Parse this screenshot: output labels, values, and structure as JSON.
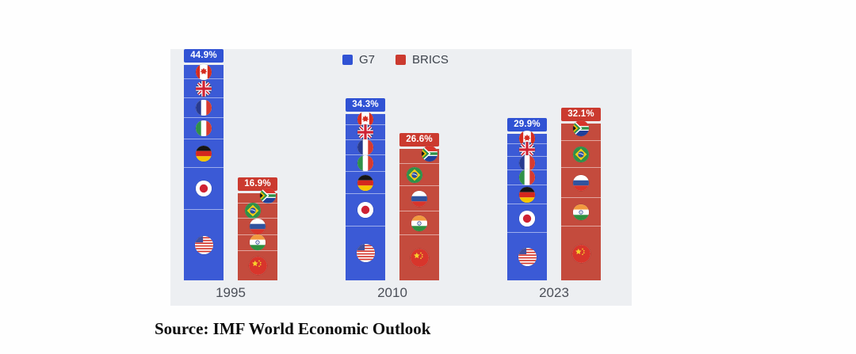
{
  "legend": {
    "g7_label": "G7",
    "brics_label": "BRICS"
  },
  "source_note": "Source: IMF World Economic Outlook",
  "colors": {
    "g7_bar": "#3b5ad6",
    "g7_label_bg": "#3052d4",
    "brics_bar": "#c44b3d",
    "brics_label_bg": "#cb3a2f",
    "panel_bg": "#edeff2",
    "axis_text": "#4b4f58",
    "legend_text": "#3d434c"
  },
  "chart_data": {
    "type": "bar",
    "categories": [
      "1995",
      "2010",
      "2023"
    ],
    "series": [
      {
        "name": "G7",
        "color": "#3b5ad6",
        "values": [
          44.9,
          34.3,
          29.9
        ],
        "labels": [
          "44.9%",
          "34.3%",
          "29.9%"
        ],
        "flags": [
          "canada",
          "uk",
          "france",
          "italy",
          "germany",
          "japan",
          "usa"
        ]
      },
      {
        "name": "BRICS",
        "color": "#c44b3d",
        "values": [
          16.9,
          26.6,
          32.1
        ],
        "labels": [
          "16.9%",
          "26.6%",
          "32.1%"
        ],
        "flags": [
          "south-africa",
          "brazil",
          "russia",
          "india",
          "china"
        ]
      }
    ],
    "unit": "%",
    "legend_position": "top-center",
    "grid": false,
    "y_axis_visible": false,
    "value_labels_position": "above-bar"
  }
}
